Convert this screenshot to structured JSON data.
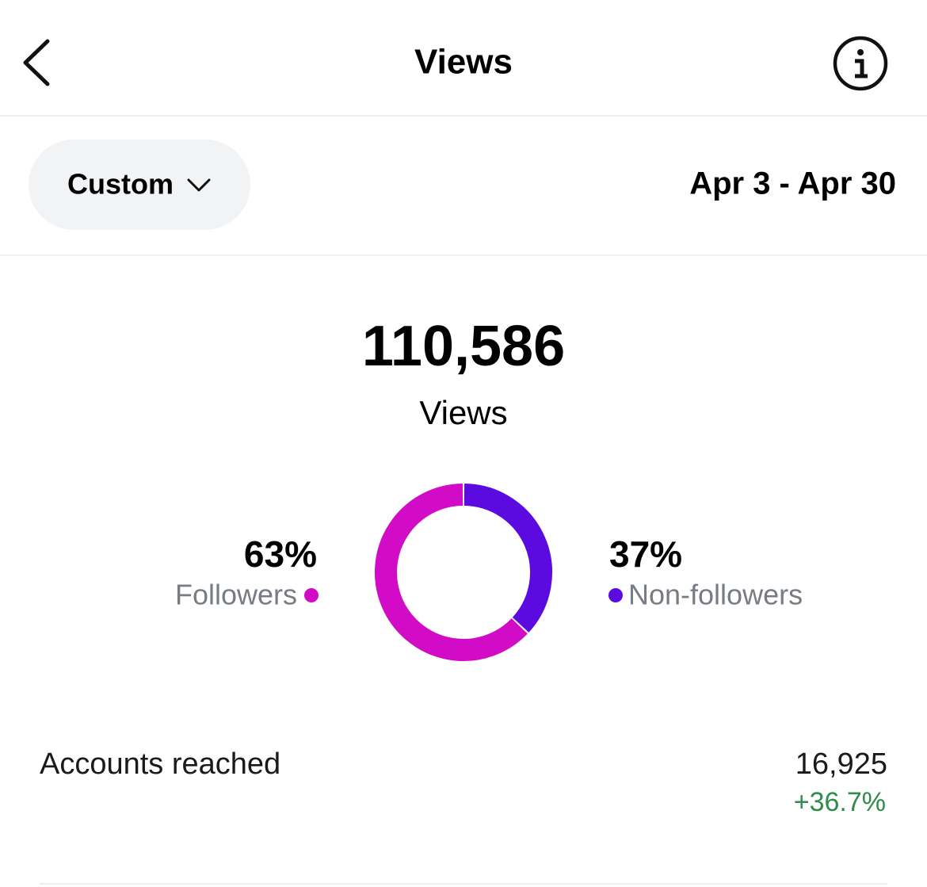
{
  "header": {
    "title": "Views"
  },
  "filter": {
    "label": "Custom",
    "date_range": "Apr 3 - Apr 30"
  },
  "summary": {
    "total": "110,586",
    "label": "Views"
  },
  "chart_data": {
    "type": "donut",
    "categories": [
      "Followers",
      "Non-followers"
    ],
    "values": [
      63,
      37
    ],
    "value_labels": [
      "63%",
      "37%"
    ],
    "colors": [
      "#d10bc6",
      "#5b0be0"
    ]
  },
  "metrics": [
    {
      "label": "Accounts reached",
      "value": "16,925",
      "change": "+36.7%"
    }
  ]
}
